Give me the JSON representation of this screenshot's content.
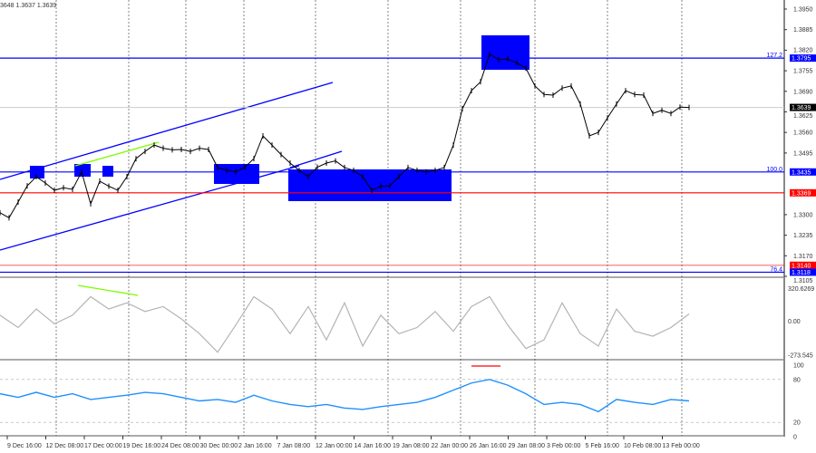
{
  "header": {
    "ohlc_text": "3648 1.3637 1.3639"
  },
  "chart_data": [
    {
      "type": "line",
      "panel": "price",
      "y_ticks": [
        "1.3950",
        "1.3885",
        "1.3820",
        "1.3755",
        "1.3690",
        "1.3625",
        "1.3560",
        "1.3495",
        "1.3300",
        "1.3235",
        "1.3170",
        "1.3105"
      ],
      "ylim": [
        1.3105,
        1.395
      ],
      "current_price": {
        "value": 1.3639,
        "label": "1.3639"
      },
      "close": [
        1.3306,
        1.329,
        1.334,
        1.3391,
        1.342,
        1.34,
        1.3377,
        1.3385,
        1.338,
        1.3435,
        1.3334,
        1.3406,
        1.339,
        1.3377,
        1.342,
        1.3477,
        1.35,
        1.352,
        1.351,
        1.3505,
        1.3506,
        1.35,
        1.351,
        1.3506,
        1.3449,
        1.344,
        1.3435,
        1.345,
        1.3477,
        1.3549,
        1.352,
        1.349,
        1.3463,
        1.344,
        1.342,
        1.345,
        1.3463,
        1.347,
        1.3449,
        1.344,
        1.342,
        1.3377,
        1.339,
        1.3391,
        1.342,
        1.3449,
        1.344,
        1.3435,
        1.344,
        1.3449,
        1.352,
        1.3635,
        1.3692,
        1.372,
        1.3807,
        1.379,
        1.3792,
        1.378,
        1.3763,
        1.3707,
        1.368,
        1.3678,
        1.37,
        1.3707,
        1.365,
        1.3549,
        1.356,
        1.3606,
        1.365,
        1.3692,
        1.368,
        1.3678,
        1.362,
        1.363,
        1.362,
        1.364,
        1.3639
      ],
      "levels": [
        {
          "value": 1.3795,
          "label": "1.3795",
          "fib": "127.2",
          "color": "#0000ff"
        },
        {
          "value": 1.3435,
          "label": "1.3435",
          "fib": "100.0",
          "color": "#0000ff"
        },
        {
          "value": 1.3369,
          "label": "1.3369",
          "fib": "",
          "color": "#ff0000"
        },
        {
          "value": 1.314,
          "label": "1.3140",
          "fib": "",
          "color": "#ff0000"
        },
        {
          "value": 1.3118,
          "label": "1.3118",
          "fib": "76.4",
          "color": "#0000ff"
        }
      ]
    },
    {
      "type": "line",
      "panel": "cci",
      "ylim": [
        -273.545,
        320.6269
      ],
      "y_ticks": [
        "320.6269",
        "0.00",
        "-273.545"
      ],
      "color": "#b4b4b4",
      "values": [
        50,
        -50,
        100,
        -20,
        50,
        200,
        100,
        150,
        80,
        120,
        20,
        -100,
        -250,
        -30,
        200,
        100,
        -100,
        120,
        -150,
        150,
        -200,
        50,
        -100,
        -50,
        80,
        -80,
        120,
        200,
        -30,
        -220,
        -150,
        150,
        -100,
        -200,
        100,
        -80,
        -120,
        -50,
        60
      ]
    },
    {
      "type": "line",
      "panel": "rsi",
      "ylim": [
        0,
        100
      ],
      "y_ticks": [
        "100",
        "80",
        "20",
        "0"
      ],
      "color": "#1e90ff",
      "values": [
        60,
        55,
        62,
        55,
        60,
        52,
        55,
        58,
        62,
        60,
        55,
        50,
        52,
        48,
        58,
        50,
        45,
        42,
        45,
        40,
        38,
        42,
        45,
        48,
        55,
        65,
        75,
        80,
        72,
        60,
        45,
        48,
        45,
        35,
        52,
        48,
        45,
        52,
        50
      ]
    }
  ],
  "x_ticks": [
    "9 Dec 16:00",
    "12 Dec 08:00",
    "17 Dec 00:00",
    "19 Dec 16:00",
    "24 Dec 08:00",
    "30 Dec 00:00",
    "2 Jan 16:00",
    "7 Jan 08:00",
    "12 Jan 00:00",
    "14 Jan 16:00",
    "19 Jan 08:00",
    "22 Jan 00:00",
    "26 Jan 16:00",
    "29 Jan 08:00",
    "3 Feb 00:00",
    "5 Feb 16:00",
    "10 Feb 08:00",
    "13 Feb 00:00"
  ],
  "colors": {
    "zone": "#0000ff",
    "channel": "#0000ff",
    "divergence": "#7cfc00",
    "rsi_mark": "#ff0000"
  }
}
